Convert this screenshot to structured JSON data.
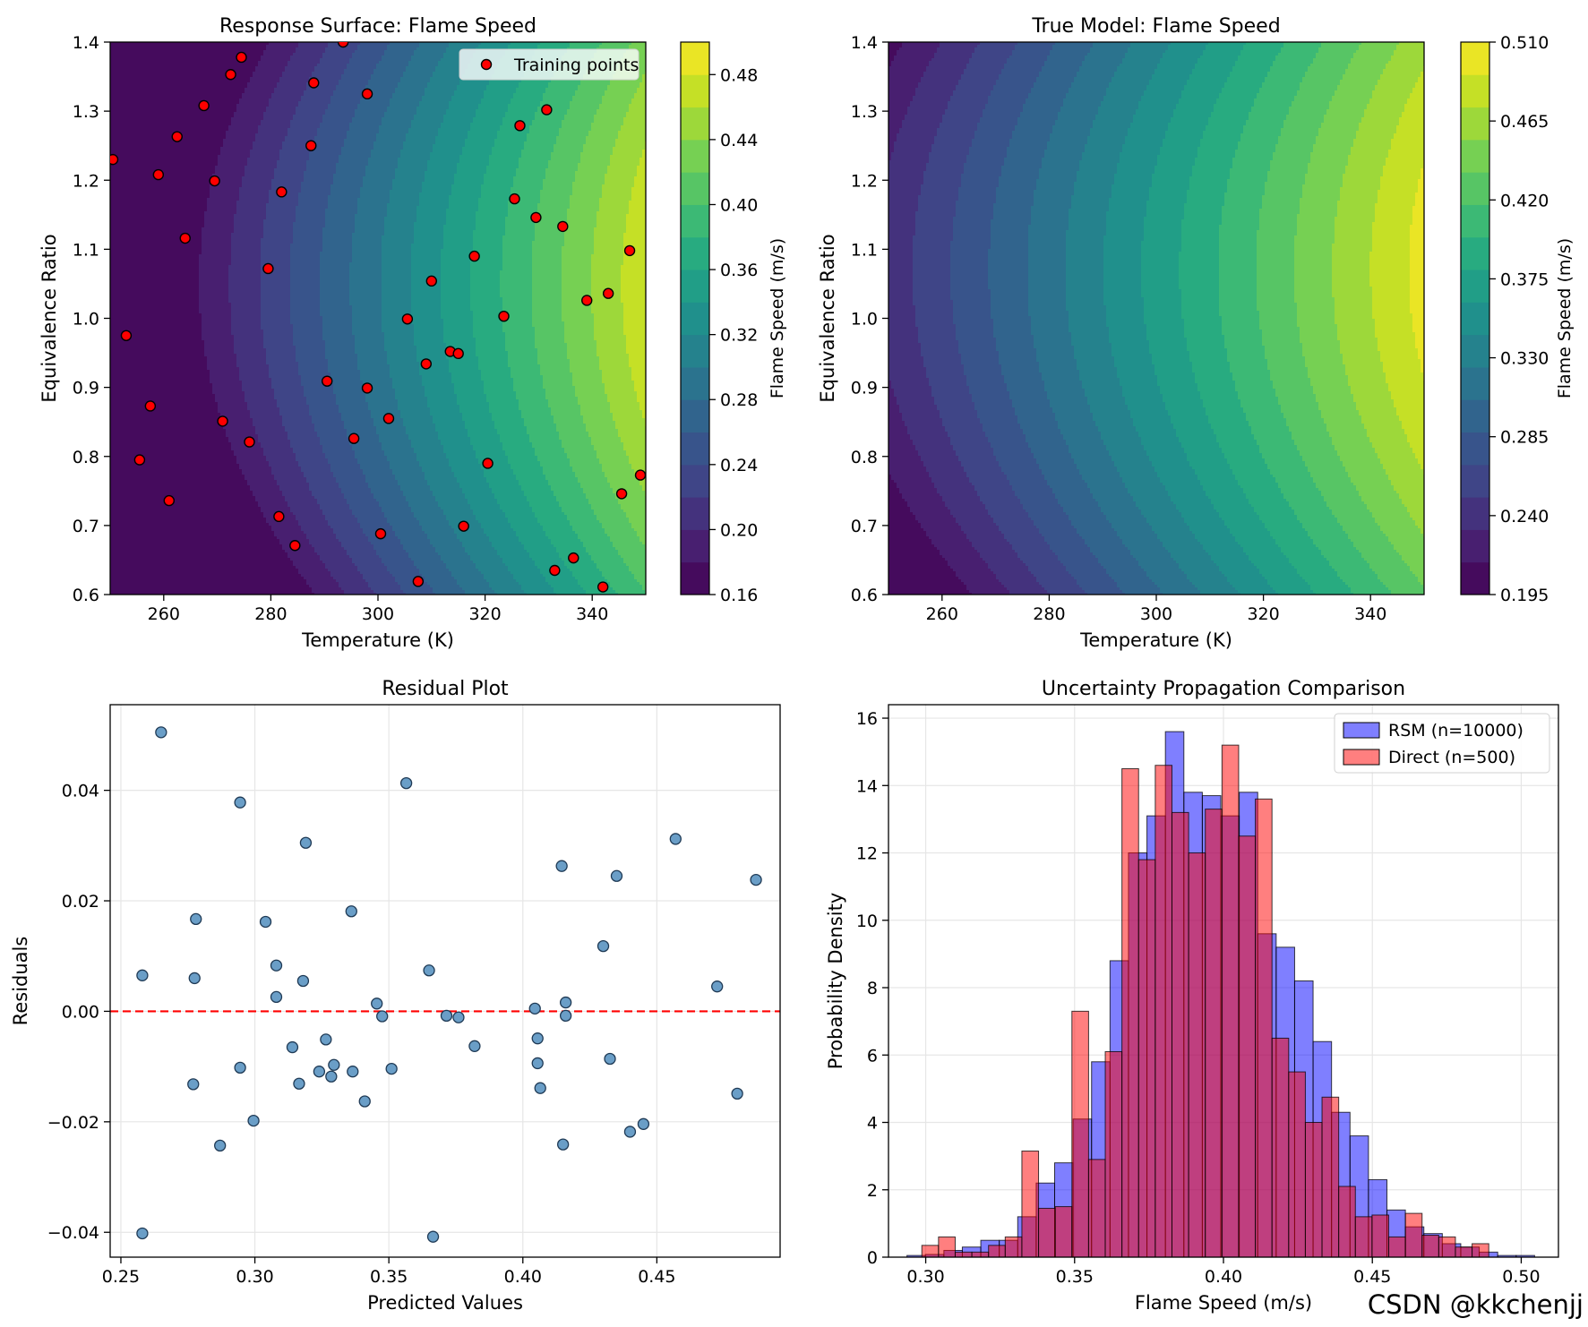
{
  "chart_data": [
    {
      "type": "contour",
      "title": "Response Surface: Flame Speed",
      "xlabel": "Temperature (K)",
      "ylabel": "Equivalence Ratio",
      "xlim": [
        250,
        350
      ],
      "ylim": [
        0.6,
        1.4
      ],
      "xticks": [
        260,
        280,
        300,
        320,
        340
      ],
      "yticks": [
        0.6,
        0.7,
        0.8,
        0.9,
        1.0,
        1.1,
        1.2,
        1.3,
        1.4
      ],
      "colormap": "viridis",
      "colorbar": {
        "label": "Flame Speed (m/s)",
        "min": 0.16,
        "max": 0.5,
        "ticks": [
          0.16,
          0.2,
          0.24,
          0.28,
          0.32,
          0.36,
          0.4,
          0.44,
          0.48
        ],
        "tick_labels": [
          "0.16",
          "0.20",
          "0.24",
          "0.28",
          "0.32",
          "0.36",
          "0.40",
          "0.44",
          "0.48"
        ]
      },
      "legend": {
        "position": "top-right",
        "entries": [
          "Training points"
        ]
      },
      "series": [
        {
          "name": "Training points",
          "marker_color": "#ff0000",
          "points": [
            [
              250.5,
              1.23
            ],
            [
              253,
              0.975
            ],
            [
              255.5,
              0.795
            ],
            [
              257.5,
              0.873
            ],
            [
              259,
              1.208
            ],
            [
              261,
              0.736
            ],
            [
              262.5,
              1.263
            ],
            [
              264,
              1.116
            ],
            [
              267.5,
              1.308
            ],
            [
              269.5,
              1.199
            ],
            [
              271,
              0.851
            ],
            [
              272.5,
              1.353
            ],
            [
              274.5,
              1.378
            ],
            [
              276,
              0.821
            ],
            [
              279.5,
              1.072
            ],
            [
              281.5,
              0.713
            ],
            [
              282,
              1.183
            ],
            [
              284.5,
              0.671
            ],
            [
              287.5,
              1.25
            ],
            [
              288,
              1.341
            ],
            [
              290.5,
              0.909
            ],
            [
              293.5,
              1.4
            ],
            [
              295.5,
              0.826
            ],
            [
              298,
              0.899
            ],
            [
              298,
              1.325
            ],
            [
              300.5,
              0.688
            ],
            [
              302,
              0.855
            ],
            [
              305.5,
              0.999
            ],
            [
              307.5,
              0.619
            ],
            [
              309,
              0.934
            ],
            [
              310,
              1.054
            ],
            [
              313.5,
              0.952
            ],
            [
              315,
              0.949
            ],
            [
              316,
              0.699
            ],
            [
              318,
              1.09
            ],
            [
              320.5,
              0.79
            ],
            [
              323.5,
              1.003
            ],
            [
              325.5,
              1.173
            ],
            [
              326.5,
              1.279
            ],
            [
              329.5,
              1.146
            ],
            [
              331.5,
              1.302
            ],
            [
              333,
              0.635
            ],
            [
              334.5,
              1.133
            ],
            [
              336.5,
              0.653
            ],
            [
              339,
              1.026
            ],
            [
              342,
              0.611
            ],
            [
              343,
              1.036
            ],
            [
              345.5,
              0.746
            ],
            [
              347,
              1.098
            ],
            [
              349,
              0.773
            ]
          ]
        }
      ]
    },
    {
      "type": "contour",
      "title": "True Model: Flame Speed",
      "xlabel": "Temperature (K)",
      "ylabel": "Equivalence Ratio",
      "xlim": [
        250,
        350
      ],
      "ylim": [
        0.6,
        1.4
      ],
      "xticks": [
        260,
        280,
        300,
        320,
        340
      ],
      "yticks": [
        0.6,
        0.7,
        0.8,
        0.9,
        1.0,
        1.1,
        1.2,
        1.3,
        1.4
      ],
      "colormap": "viridis",
      "colorbar": {
        "label": "Flame Speed (m/s)",
        "min": 0.195,
        "max": 0.51,
        "ticks": [
          0.195,
          0.24,
          0.285,
          0.33,
          0.375,
          0.42,
          0.465,
          0.51
        ],
        "tick_labels": [
          "0.195",
          "0.240",
          "0.285",
          "0.330",
          "0.375",
          "0.420",
          "0.465",
          "0.510"
        ]
      }
    },
    {
      "type": "scatter",
      "title": "Residual Plot",
      "xlabel": "Predicted Values",
      "ylabel": "Residuals",
      "xlim": [
        0.246,
        0.496
      ],
      "ylim": [
        -0.0445,
        0.0555
      ],
      "xticks": [
        0.25,
        0.3,
        0.35,
        0.4,
        0.45
      ],
      "xtick_labels": [
        "0.25",
        "0.30",
        "0.35",
        "0.40",
        "0.45"
      ],
      "yticks": [
        -0.04,
        -0.02,
        0.0,
        0.02,
        0.04
      ],
      "ytick_labels": [
        "−0.04",
        "−0.02",
        "0.00",
        "0.02",
        "0.04"
      ],
      "grid": true,
      "reference_line": {
        "y": 0.0,
        "color": "#ff0000",
        "style": "dashed"
      },
      "series": [
        {
          "name": "",
          "marker_color": "#6a9ec7",
          "points": [
            [
              0.258,
              0.0065
            ],
            [
              0.258,
              -0.0402
            ],
            [
              0.265,
              0.0505
            ],
            [
              0.277,
              -0.0132
            ],
            [
              0.2775,
              0.006
            ],
            [
              0.278,
              0.0167
            ],
            [
              0.287,
              -0.0243
            ],
            [
              0.2945,
              0.0378
            ],
            [
              0.2945,
              -0.0102
            ],
            [
              0.2995,
              -0.0198
            ],
            [
              0.304,
              0.0162
            ],
            [
              0.308,
              0.0083
            ],
            [
              0.308,
              0.0026
            ],
            [
              0.314,
              -0.0065
            ],
            [
              0.3165,
              -0.0131
            ],
            [
              0.318,
              0.0055
            ],
            [
              0.319,
              0.0305
            ],
            [
              0.324,
              -0.0109
            ],
            [
              0.3265,
              -0.0051
            ],
            [
              0.3285,
              -0.0118
            ],
            [
              0.3295,
              -0.0097
            ],
            [
              0.336,
              0.0181
            ],
            [
              0.3365,
              -0.0109
            ],
            [
              0.341,
              -0.0163
            ],
            [
              0.3455,
              0.0014
            ],
            [
              0.3475,
              -0.0009
            ],
            [
              0.351,
              -0.0104
            ],
            [
              0.3565,
              0.0413
            ],
            [
              0.365,
              0.0074
            ],
            [
              0.3665,
              -0.0408
            ],
            [
              0.3715,
              -0.0008
            ],
            [
              0.376,
              -0.0011
            ],
            [
              0.382,
              -0.0063
            ],
            [
              0.4045,
              0.0005
            ],
            [
              0.4055,
              -0.0049
            ],
            [
              0.4055,
              -0.0094
            ],
            [
              0.4065,
              -0.0139
            ],
            [
              0.4145,
              0.0263
            ],
            [
              0.415,
              -0.0241
            ],
            [
              0.416,
              0.0016
            ],
            [
              0.416,
              -0.0008
            ],
            [
              0.43,
              0.0118
            ],
            [
              0.4325,
              -0.0086
            ],
            [
              0.435,
              0.0245
            ],
            [
              0.44,
              -0.0218
            ],
            [
              0.445,
              -0.0204
            ],
            [
              0.457,
              0.0312
            ],
            [
              0.4725,
              0.0045
            ],
            [
              0.48,
              -0.0149
            ],
            [
              0.487,
              0.0238
            ]
          ]
        }
      ]
    },
    {
      "type": "bar",
      "title": "Uncertainty Propagation Comparison",
      "xlabel": "Flame Speed (m/s)",
      "ylabel": "Probability Density",
      "xlim": [
        0.2875,
        0.5125
      ],
      "ylim": [
        0,
        16.4
      ],
      "xticks": [
        0.3,
        0.35,
        0.4,
        0.45,
        0.5
      ],
      "xtick_labels": [
        "0.30",
        "0.35",
        "0.40",
        "0.45",
        "0.50"
      ],
      "yticks": [
        0,
        2,
        4,
        6,
        8,
        10,
        12,
        14,
        16
      ],
      "grid": true,
      "legend": {
        "position": "top-right",
        "entries": [
          "RSM (n=10000)",
          "Direct (n=500)"
        ]
      },
      "series": [
        {
          "name": "RSM (n=10000)",
          "color": "#0000ff",
          "bins": [
            [
              0.2937,
              0.2999,
              0.05
            ],
            [
              0.2999,
              0.3061,
              0.08
            ],
            [
              0.3061,
              0.3123,
              0.2
            ],
            [
              0.3123,
              0.3185,
              0.3
            ],
            [
              0.3185,
              0.3247,
              0.5
            ],
            [
              0.3247,
              0.3309,
              0.5
            ],
            [
              0.3309,
              0.3371,
              1.2
            ],
            [
              0.3371,
              0.3433,
              2.2
            ],
            [
              0.3433,
              0.3495,
              2.8
            ],
            [
              0.3495,
              0.3557,
              4.1
            ],
            [
              0.3557,
              0.3619,
              5.8
            ],
            [
              0.3619,
              0.3681,
              8.8
            ],
            [
              0.3681,
              0.3743,
              12
            ],
            [
              0.3743,
              0.3805,
              13.1
            ],
            [
              0.3805,
              0.3867,
              15.6
            ],
            [
              0.3867,
              0.3929,
              13.8
            ],
            [
              0.3929,
              0.3991,
              13.7
            ],
            [
              0.3991,
              0.4053,
              13.1
            ],
            [
              0.4053,
              0.4115,
              13.8
            ],
            [
              0.4115,
              0.4177,
              9.6
            ],
            [
              0.4177,
              0.4239,
              9.2
            ],
            [
              0.4239,
              0.4301,
              8.2
            ],
            [
              0.4301,
              0.4363,
              6.4
            ],
            [
              0.4363,
              0.4425,
              4.3
            ],
            [
              0.4425,
              0.4487,
              3.6
            ],
            [
              0.4487,
              0.4549,
              2.3
            ],
            [
              0.4549,
              0.4611,
              1.4
            ],
            [
              0.4611,
              0.4673,
              0.9
            ],
            [
              0.4673,
              0.4735,
              0.7
            ],
            [
              0.4735,
              0.4797,
              0.4
            ],
            [
              0.4797,
              0.4859,
              0.3
            ],
            [
              0.4859,
              0.4921,
              0.15
            ],
            [
              0.4921,
              0.4983,
              0.05
            ],
            [
              0.4983,
              0.5045,
              0.05
            ]
          ]
        },
        {
          "name": "Direct (n=500)",
          "color": "#ff0000",
          "bins": [
            [
              0.2987,
              0.3043,
              0.35
            ],
            [
              0.3043,
              0.3099,
              0.6
            ],
            [
              0.3099,
              0.3155,
              0.15
            ],
            [
              0.3155,
              0.3211,
              0.15
            ],
            [
              0.3211,
              0.3267,
              0.35
            ],
            [
              0.3267,
              0.3323,
              0.6
            ],
            [
              0.3323,
              0.3379,
              3.15
            ],
            [
              0.3379,
              0.3435,
              1.45
            ],
            [
              0.3435,
              0.3491,
              1.5
            ],
            [
              0.3491,
              0.3547,
              7.3
            ],
            [
              0.3547,
              0.3603,
              2.9
            ],
            [
              0.3603,
              0.3659,
              6.1
            ],
            [
              0.3659,
              0.3715,
              14.5
            ],
            [
              0.3715,
              0.3771,
              11.8
            ],
            [
              0.3771,
              0.3827,
              14.6
            ],
            [
              0.3827,
              0.3883,
              13.2
            ],
            [
              0.3883,
              0.3939,
              12.0
            ],
            [
              0.3939,
              0.3995,
              13.3
            ],
            [
              0.3995,
              0.4051,
              15.2
            ],
            [
              0.4051,
              0.4107,
              12.5
            ],
            [
              0.4107,
              0.4163,
              13.6
            ],
            [
              0.4163,
              0.4219,
              6.5
            ],
            [
              0.4219,
              0.4275,
              5.5
            ],
            [
              0.4275,
              0.4331,
              4.0
            ],
            [
              0.4331,
              0.4387,
              4.75
            ],
            [
              0.4387,
              0.4443,
              2.1
            ],
            [
              0.4443,
              0.4499,
              1.2
            ],
            [
              0.4499,
              0.4555,
              1.25
            ],
            [
              0.4555,
              0.4611,
              0.6
            ],
            [
              0.4611,
              0.4667,
              1.3
            ],
            [
              0.4667,
              0.4723,
              0.65
            ],
            [
              0.4723,
              0.4779,
              0.6
            ],
            [
              0.4779,
              0.4835,
              0.3
            ],
            [
              0.4835,
              0.4891,
              0.4
            ]
          ]
        }
      ]
    }
  ],
  "watermark": "CSDN @kkchenjj"
}
